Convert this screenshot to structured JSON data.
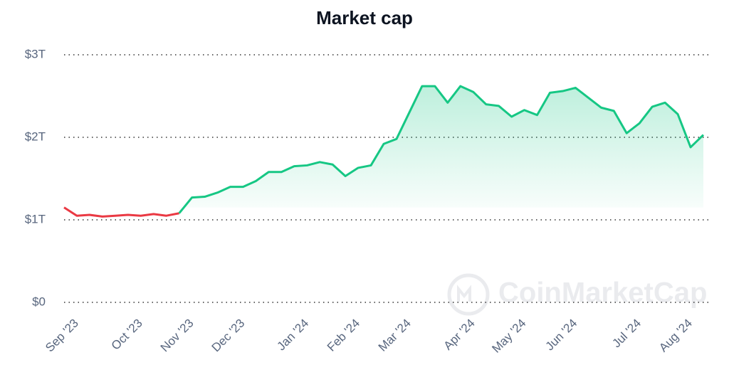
{
  "chart_data": {
    "type": "line",
    "title": "Market cap",
    "watermark": "CoinMarketCap",
    "categories": [
      null,
      "Sep '23",
      null,
      null,
      null,
      null,
      "Oct '23",
      null,
      null,
      null,
      "Nov '23",
      null,
      null,
      null,
      "Dec '23",
      null,
      null,
      null,
      null,
      "Jan '24",
      null,
      null,
      null,
      "Feb '24",
      null,
      null,
      null,
      "Mar '24",
      null,
      null,
      null,
      null,
      "Apr '24",
      null,
      null,
      null,
      "May '24",
      null,
      null,
      null,
      "Jun '24",
      null,
      null,
      null,
      null,
      "Jul '24",
      null,
      null,
      null,
      "Aug '24",
      null
    ],
    "values": [
      1.15,
      1.05,
      1.06,
      1.04,
      1.05,
      1.06,
      1.05,
      1.07,
      1.05,
      1.08,
      1.27,
      1.28,
      1.33,
      1.4,
      1.4,
      1.47,
      1.58,
      1.58,
      1.65,
      1.66,
      1.7,
      1.67,
      1.53,
      1.63,
      1.66,
      1.92,
      1.98,
      2.3,
      2.62,
      2.62,
      2.42,
      2.62,
      2.55,
      2.4,
      2.38,
      2.25,
      2.33,
      2.27,
      2.54,
      2.56,
      2.6,
      2.48,
      2.36,
      2.32,
      2.05,
      2.17,
      2.37,
      2.42,
      2.28,
      1.88,
      2.03
    ],
    "up_color": "#16c784",
    "down_color": "#ea3943",
    "ylim": [
      0,
      3
    ],
    "yticks": [
      {
        "value": 0,
        "label": "$0"
      },
      {
        "value": 1,
        "label": "$1T"
      },
      {
        "value": 2,
        "label": "$2T"
      },
      {
        "value": 3,
        "label": "$3T"
      }
    ],
    "grid": true
  }
}
